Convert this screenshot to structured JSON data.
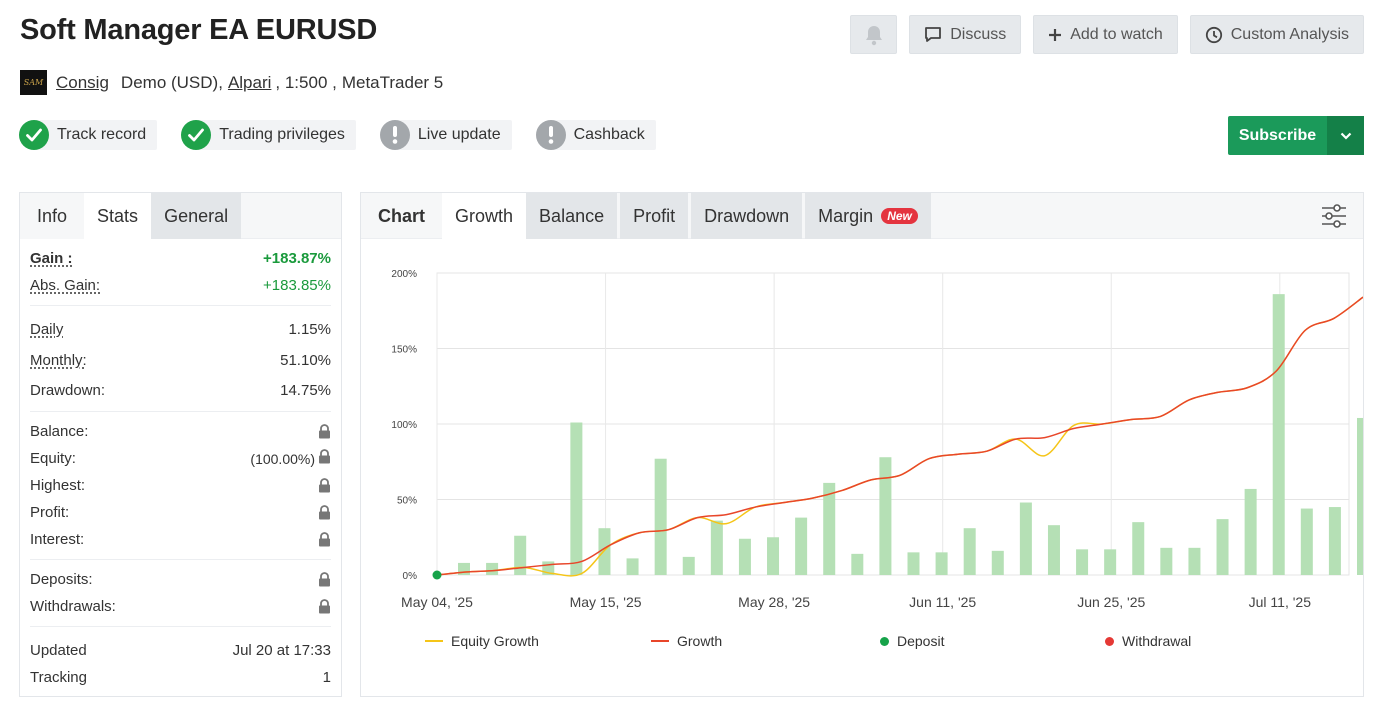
{
  "header": {
    "title": "Soft Manager EA EURUSD",
    "actions": {
      "bell_icon": "bell-icon",
      "discuss": "Discuss",
      "add_to_watch": "Add to watch",
      "custom_analysis": "Custom Analysis"
    }
  },
  "account": {
    "avatar_text": "SAM",
    "user": "Consig",
    "type": "Demo (USD),",
    "broker": "Alpari",
    "leverage": ", 1:500 ,",
    "platform": "MetaTrader 5"
  },
  "badges": [
    {
      "label": "Track record",
      "status": "ok"
    },
    {
      "label": "Trading privileges",
      "status": "ok"
    },
    {
      "label": "Live update",
      "status": "warn"
    },
    {
      "label": "Cashback",
      "status": "warn"
    }
  ],
  "subscribe": {
    "label": "Subscribe"
  },
  "left_tabs": {
    "info": "Info",
    "stats": "Stats",
    "general": "General"
  },
  "stats": {
    "gain_label": "Gain :",
    "gain": "+183.87%",
    "abs_gain_label": "Abs. Gain:",
    "abs_gain": "+183.85%",
    "daily_label": "Daily",
    "daily": "1.15%",
    "monthly_label": "Monthly:",
    "monthly": "51.10%",
    "drawdown_label": "Drawdown:",
    "drawdown": "14.75%",
    "balance_label": "Balance:",
    "equity_label": "Equity:",
    "equity": "(100.00%)",
    "highest_label": "Highest:",
    "profit_label": "Profit:",
    "interest_label": "Interest:",
    "deposits_label": "Deposits:",
    "withdrawals_label": "Withdrawals:",
    "updated_label": "Updated",
    "updated": "Jul 20 at 17:33",
    "tracking_label": "Tracking",
    "tracking": "1"
  },
  "chart_tabs": {
    "heading": "Chart",
    "growth": "Growth",
    "balance": "Balance",
    "profit": "Profit",
    "drawdown": "Drawdown",
    "margin": "Margin",
    "new_badge": "New"
  },
  "colors": {
    "growth": "#e8462a",
    "equity": "#f5c518",
    "bars": "#b5e0b5",
    "deposit": "#16a34a",
    "withdrawal": "#e53935",
    "subscribe": "#1b9a5a"
  },
  "chart_data": {
    "type": "line",
    "ylim": [
      0,
      200
    ],
    "yticks": [
      "0%",
      "50%",
      "100%",
      "150%",
      "200%"
    ],
    "xticks": [
      "May 04, '25",
      "May 15, '25",
      "May 28, '25",
      "Jun 11, '25",
      "Jun 25, '25",
      "Jul 11, '25"
    ],
    "legend": [
      "Equity Growth",
      "Growth",
      "Deposit",
      "Withdrawal"
    ],
    "legend_position": "bottom",
    "grid": true,
    "bars": [
      8,
      8,
      26,
      9,
      101,
      31,
      11,
      77,
      12,
      36,
      24,
      25,
      38,
      61,
      14,
      78,
      15,
      15,
      31,
      16,
      48,
      33,
      17,
      17,
      35,
      18,
      18,
      37,
      57,
      186,
      44,
      45,
      104
    ],
    "growth": [
      0,
      2,
      3,
      5,
      7,
      9,
      20,
      28,
      30,
      38,
      40,
      45,
      48,
      51,
      56,
      63,
      66,
      77,
      80,
      82,
      90,
      91,
      97,
      100,
      103,
      105,
      116,
      121,
      124,
      135,
      162,
      170,
      184
    ],
    "equity": [
      0,
      2,
      3,
      5,
      1,
      1,
      20,
      28,
      30,
      38,
      34,
      45,
      48,
      51,
      56,
      63,
      66,
      77,
      80,
      82,
      90,
      79,
      99,
      100,
      103,
      105,
      116,
      121,
      124,
      135,
      162,
      170,
      184
    ],
    "deposits": [
      [
        0,
        0
      ]
    ]
  }
}
